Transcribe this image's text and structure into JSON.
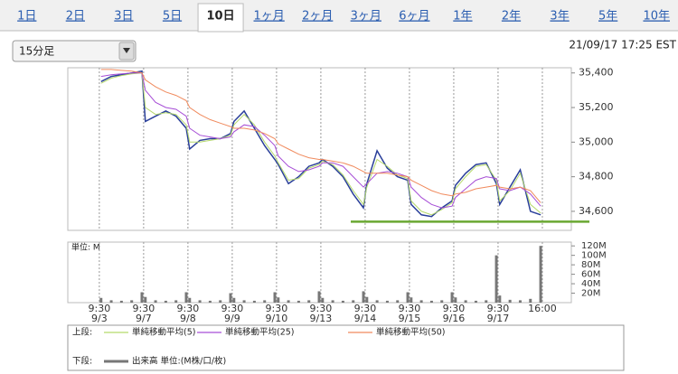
{
  "tabs": [
    "1日",
    "2日",
    "3日",
    "5日",
    "10日",
    "1ヶ月",
    "2ヶ月",
    "3ヶ月",
    "6ヶ月",
    "1年",
    "2年",
    "3年",
    "5年",
    "10年"
  ],
  "selected_tab": 4,
  "interval_select": "15分足",
  "timestamp": "21/09/17 17:25 EST",
  "legend": {
    "upper": "上段:",
    "lower": "下段:"
  },
  "chart_data": [
    {
      "type": "line",
      "x": [
        1,
        7,
        13,
        19,
        25,
        27,
        33,
        39,
        45,
        51,
        53,
        59,
        65,
        71,
        77,
        79,
        85,
        91,
        97,
        103,
        105,
        111,
        117,
        123,
        129,
        131,
        137,
        143,
        149,
        155,
        157,
        163,
        169,
        175,
        181,
        183,
        189,
        195,
        201,
        207,
        209,
        215,
        221,
        227,
        233,
        235,
        241,
        247,
        253,
        259
      ],
      "xlim": [
        -18.5,
        277
      ],
      "ylim": [
        34490,
        35430
      ],
      "yticks": [
        {
          "value": 34600,
          "label": "34,600"
        },
        {
          "value": 34800,
          "label": "34,800"
        },
        {
          "value": 35000,
          "label": "35,000"
        },
        {
          "value": 35200,
          "label": "35,200"
        },
        {
          "value": 35400,
          "label": "35,400"
        }
      ],
      "xticks": [
        {
          "value": 0,
          "label": "9:30",
          "date": "9/3"
        },
        {
          "value": 26,
          "label": "9:30",
          "date": "9/7"
        },
        {
          "value": 52,
          "label": "9:30",
          "date": "9/8"
        },
        {
          "value": 78,
          "label": "9:30",
          "date": "9/9"
        },
        {
          "value": 104,
          "label": "9:30",
          "date": "9/10"
        },
        {
          "value": 130,
          "label": "9:30",
          "date": "9/13"
        },
        {
          "value": 156,
          "label": "9:30",
          "date": "9/14"
        },
        {
          "value": 182,
          "label": "9:30",
          "date": "9/15"
        },
        {
          "value": 208,
          "label": "9:30",
          "date": "9/16"
        },
        {
          "value": 234,
          "label": "9:30",
          "date": "9/17"
        },
        {
          "value": 260,
          "label": "16:00"
        }
      ],
      "grid": true,
      "hline": {
        "value": 34540,
        "color": "#6aa832"
      },
      "series": [
        {
          "color": "#2a3f9a",
          "values": [
            35350,
            35380,
            35390,
            35400,
            35410,
            35120,
            35150,
            35180,
            35150,
            35080,
            34960,
            35010,
            35020,
            35020,
            35050,
            35120,
            35180,
            35080,
            34980,
            34900,
            34870,
            34760,
            34800,
            34860,
            34880,
            34900,
            34860,
            34800,
            34700,
            34620,
            34760,
            34950,
            34850,
            34800,
            34780,
            34640,
            34580,
            34570,
            34620,
            34660,
            34750,
            34820,
            34870,
            34880,
            34760,
            34640,
            34740,
            34840,
            34600,
            34580
          ]
        },
        {
          "name": "単純移動平均(5)",
          "color": "#b5d96b",
          "values": [
            35340,
            35370,
            35385,
            35395,
            35400,
            35200,
            35160,
            35170,
            35160,
            35100,
            35000,
            35000,
            35010,
            35020,
            35040,
            35100,
            35160,
            35100,
            35000,
            34920,
            34880,
            34780,
            34790,
            34850,
            34870,
            34890,
            34870,
            34810,
            34720,
            34640,
            34740,
            34900,
            34860,
            34810,
            34790,
            34660,
            34600,
            34580,
            34610,
            34650,
            34730,
            34800,
            34860,
            34870,
            34780,
            34660,
            34720,
            34820,
            34640,
            34590
          ]
        },
        {
          "name": "単純移動平均(25)",
          "color": "#a64dd6",
          "values": [
            35380,
            35390,
            35395,
            35400,
            35400,
            35300,
            35230,
            35200,
            35190,
            35150,
            35080,
            35040,
            35030,
            35020,
            35030,
            35060,
            35100,
            35090,
            35040,
            34980,
            34920,
            34860,
            34830,
            34840,
            34860,
            34880,
            34880,
            34860,
            34800,
            34740,
            34760,
            34820,
            34830,
            34820,
            34800,
            34740,
            34680,
            34640,
            34620,
            34630,
            34680,
            34730,
            34780,
            34800,
            34790,
            34730,
            34720,
            34740,
            34700,
            34630
          ]
        },
        {
          "name": "単純移動平均(50)",
          "color": "#f08a5d",
          "values": [
            35420,
            35420,
            35415,
            35410,
            35400,
            35360,
            35320,
            35290,
            35270,
            35240,
            35200,
            35160,
            35130,
            35110,
            35090,
            35080,
            35080,
            35070,
            35050,
            35020,
            34990,
            34960,
            34930,
            34910,
            34900,
            34900,
            34890,
            34880,
            34860,
            34830,
            34820,
            34820,
            34820,
            34810,
            34800,
            34780,
            34750,
            34720,
            34700,
            34690,
            34700,
            34710,
            34730,
            34740,
            34750,
            34740,
            34730,
            34740,
            34720,
            34650
          ]
        }
      ]
    },
    {
      "type": "bar",
      "unit_label": "単位: M",
      "x": [
        1,
        7,
        13,
        19,
        25,
        27,
        33,
        39,
        45,
        51,
        53,
        59,
        65,
        71,
        77,
        79,
        85,
        91,
        97,
        103,
        105,
        111,
        117,
        123,
        129,
        131,
        137,
        143,
        149,
        155,
        157,
        163,
        169,
        175,
        181,
        183,
        189,
        195,
        201,
        207,
        209,
        215,
        221,
        227,
        233,
        235,
        241,
        247,
        253,
        259
      ],
      "xlim": [
        -18.5,
        277
      ],
      "ylim": [
        0,
        128
      ],
      "yticks": [
        {
          "value": 20,
          "label": "20M"
        },
        {
          "value": 40,
          "label": "40M"
        },
        {
          "value": 60,
          "label": "60M"
        },
        {
          "value": 80,
          "label": "80M"
        },
        {
          "value": 100,
          "label": "100M"
        },
        {
          "value": 120,
          "label": "120M"
        }
      ],
      "series": [
        {
          "name": "出来高 単位:(M株/口/枚)",
          "color": "#777777",
          "values": [
            10,
            5,
            4,
            5,
            22,
            12,
            5,
            4,
            5,
            22,
            10,
            5,
            4,
            5,
            20,
            10,
            5,
            4,
            5,
            22,
            11,
            5,
            4,
            5,
            24,
            10,
            5,
            4,
            5,
            24,
            12,
            5,
            4,
            5,
            22,
            11,
            5,
            4,
            5,
            22,
            11,
            5,
            4,
            5,
            100,
            15,
            6,
            5,
            8,
            120
          ]
        }
      ]
    }
  ]
}
